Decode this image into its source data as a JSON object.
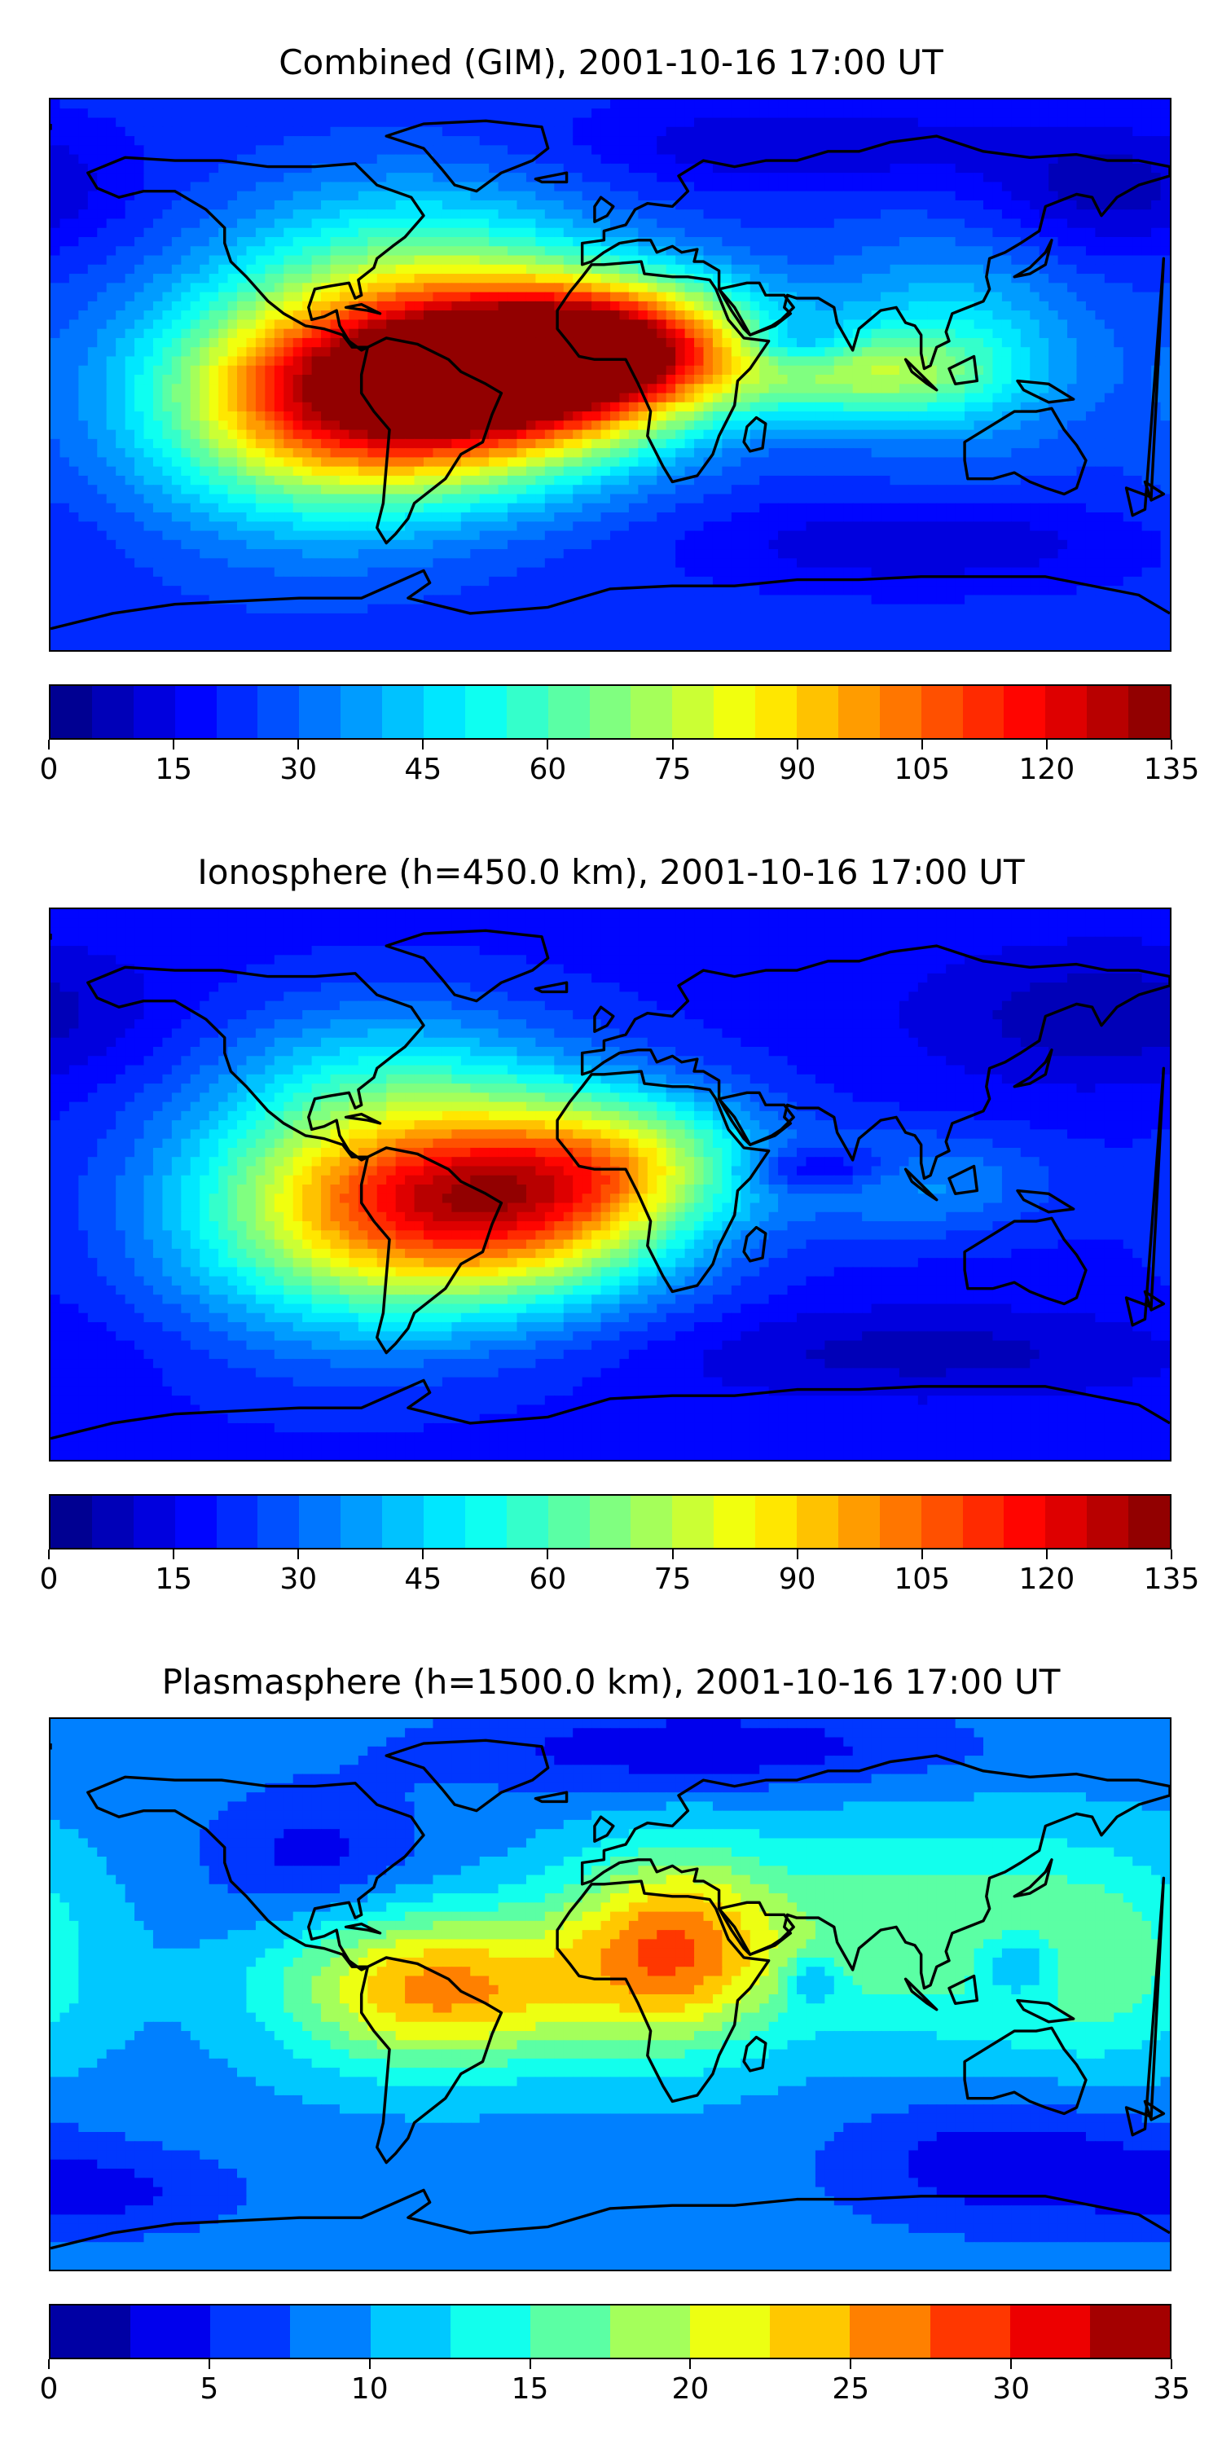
{
  "panels": [
    {
      "title": "Combined (GIM), 2001-10-16 17:00 UT",
      "colorbar": {
        "min": 0,
        "max": 135,
        "levels": 27,
        "tick_labels": [
          "0",
          "15",
          "30",
          "45",
          "60",
          "75",
          "90",
          "105",
          "120",
          "135"
        ]
      },
      "field": {
        "base": 22,
        "blobs": [
          {
            "lon": -62,
            "lat": -5,
            "value": 95,
            "sx": 45,
            "sy": 22
          },
          {
            "lon": -20,
            "lat": 5,
            "value": 70,
            "sx": 35,
            "sy": 18
          },
          {
            "lon": 10,
            "lat": 10,
            "value": 55,
            "sx": 30,
            "sy": 15
          },
          {
            "lon": -100,
            "lat": -10,
            "value": 35,
            "sx": 40,
            "sy": 30
          },
          {
            "lon": 80,
            "lat": 0,
            "value": 35,
            "sx": 30,
            "sy": 10
          },
          {
            "lon": 110,
            "lat": 10,
            "value": 25,
            "sx": 30,
            "sy": 25
          },
          {
            "lon": -60,
            "lat": 40,
            "value": 25,
            "sx": 40,
            "sy": 20
          },
          {
            "lon": 60,
            "lat": 10,
            "value": -20,
            "sx": 12,
            "sy": 6
          },
          {
            "lon": 160,
            "lat": 60,
            "value": -15,
            "sx": 30,
            "sy": 15
          },
          {
            "lon": 60,
            "lat": 75,
            "value": -12,
            "sx": 50,
            "sy": 10
          },
          {
            "lon": 100,
            "lat": -55,
            "value": -12,
            "sx": 50,
            "sy": 10
          }
        ]
      }
    },
    {
      "title": "Ionosphere  (h=450.0 km), 2001-10-16 17:00 UT",
      "colorbar": {
        "min": 0,
        "max": 135,
        "levels": 27,
        "tick_labels": [
          "0",
          "15",
          "30",
          "45",
          "60",
          "75",
          "90",
          "105",
          "120",
          "135"
        ]
      },
      "field": {
        "base": 18,
        "blobs": [
          {
            "lon": -55,
            "lat": -5,
            "value": 70,
            "sx": 45,
            "sy": 25
          },
          {
            "lon": -20,
            "lat": -5,
            "value": 40,
            "sx": 35,
            "sy": 20
          },
          {
            "lon": 10,
            "lat": 10,
            "value": 30,
            "sx": 30,
            "sy": 15
          },
          {
            "lon": -95,
            "lat": -10,
            "value": 25,
            "sx": 40,
            "sy": 30
          },
          {
            "lon": 100,
            "lat": 0,
            "value": 18,
            "sx": 30,
            "sy": 12
          },
          {
            "lon": -70,
            "lat": 40,
            "value": 15,
            "sx": 40,
            "sy": 18
          },
          {
            "lon": 65,
            "lat": 5,
            "value": -18,
            "sx": 18,
            "sy": 5
          },
          {
            "lon": 160,
            "lat": 55,
            "value": -12,
            "sx": 40,
            "sy": 15
          },
          {
            "lon": 100,
            "lat": -55,
            "value": -10,
            "sx": 60,
            "sy": 10
          }
        ]
      }
    },
    {
      "title": "Plasmasphere (h=1500.0 km), 2001-10-16 17:00 UT",
      "colorbar": {
        "min": 0,
        "max": 35,
        "levels": 14,
        "tick_labels": [
          "0",
          "5",
          "10",
          "15",
          "20",
          "25",
          "30",
          "35"
        ]
      },
      "field": {
        "base": 9,
        "blobs": [
          {
            "lon": -55,
            "lat": 2,
            "value": 17,
            "sx": 35,
            "sy": 18
          },
          {
            "lon": 20,
            "lat": 15,
            "value": 17,
            "sx": 25,
            "sy": 22
          },
          {
            "lon": 100,
            "lat": 20,
            "value": 8,
            "sx": 40,
            "sy": 25
          },
          {
            "lon": 160,
            "lat": 10,
            "value": 6,
            "sx": 25,
            "sy": 25
          },
          {
            "lon": 65,
            "lat": 5,
            "value": -6,
            "sx": 6,
            "sy": 6
          },
          {
            "lon": 132,
            "lat": 10,
            "value": -7,
            "sx": 10,
            "sy": 8
          },
          {
            "lon": -95,
            "lat": 45,
            "value": -5,
            "sx": 25,
            "sy": 15
          },
          {
            "lon": 30,
            "lat": 80,
            "value": -6,
            "sx": 60,
            "sy": 10
          },
          {
            "lon": 130,
            "lat": -55,
            "value": -6,
            "sx": 40,
            "sy": 15
          },
          {
            "lon": -160,
            "lat": -65,
            "value": -4,
            "sx": 30,
            "sy": 10
          }
        ]
      }
    }
  ]
}
